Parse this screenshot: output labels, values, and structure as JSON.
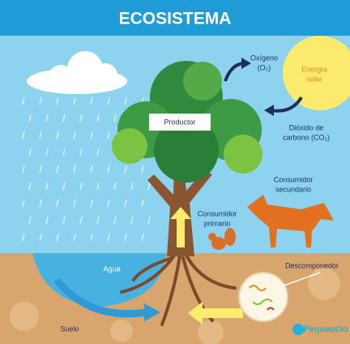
{
  "header": {
    "title": "ECOSISTEMA"
  },
  "labels": {
    "producer": "Productor",
    "oxygen": [
      "Oxígeno",
      "(O₂)"
    ],
    "solar": [
      "Energía",
      "solar"
    ],
    "co2": [
      "Dióxido de",
      "carbono (CO₂)"
    ],
    "secondary": [
      "Consumidor",
      "secundario"
    ],
    "primary": [
      "Consumidor",
      "primario"
    ],
    "decomposer": "Descomponedor",
    "water": "Agua",
    "soil": "Suelo",
    "logo": "Pequeocio"
  }
}
